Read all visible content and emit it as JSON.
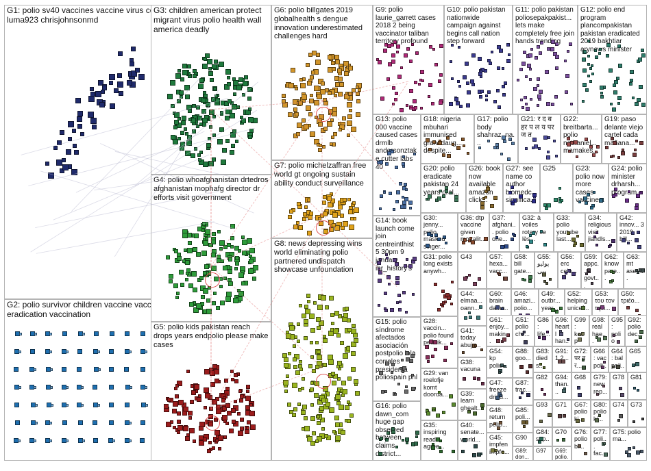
{
  "groups": [
    {
      "id": "G1",
      "label": "G1: polio sv40 vaccines vaccine virus contaminated simian cancer luma923 chrisjohnsonmd",
      "color": "#1f2a6b",
      "ring": false
    },
    {
      "id": "G2",
      "label": "G2: polio survivor children vaccine vaccines health world virus eradication vaccination",
      "color": "#1e6fb0",
      "ring": true
    },
    {
      "id": "G3",
      "label": "G3: children american protect migrant virus polio health wall america deadly",
      "color": "#1f7a3d",
      "ring": false
    },
    {
      "id": "G4",
      "label": "G4: polio whoafghanistan drtedros afghanistan mophafg director dr efforts visit government",
      "color": "#2e9c3a",
      "ring": true
    },
    {
      "id": "G5",
      "label": "G5: polio kids pakistan reach drops years endpolio please make cases",
      "color": "#9b1c1c",
      "ring": true
    },
    {
      "id": "G6",
      "label": "G6: polio billgates 2019 globalhealth s dengue innovation underestimated challenges hard",
      "color": "#d2952a",
      "ring": true
    },
    {
      "id": "G7",
      "label": "G7: polio michelzaffran free world gt ongoing sustain ability conduct surveillance",
      "color": "#e0a21b",
      "ring": true
    },
    {
      "id": "G8",
      "label": "G8: news depressing wins world eliminating polio partnered undispatch showcase unfoundation",
      "color": "#9ab51f",
      "ring": true
    },
    {
      "id": "G9",
      "label": "G9: polio laurie_garrett cases 2018 2 being vaccinator taliban territory profound",
      "color": "#b02a78",
      "ring": true
    },
    {
      "id": "G10",
      "label": "G10: polio pakistan nationwide campaign against begins call nation step forward",
      "color": "#3b3b8f",
      "ring": false
    },
    {
      "id": "G11",
      "label": "G11: polio pakistan poliosepakpakist... lets make completely free join hands trending",
      "color": "#7b4fa0",
      "ring": false
    },
    {
      "id": "G12",
      "label": "G12: polio end program plancompakistan pakistan eradicated 2019 bakhtiar arynews minister",
      "color": "#2e7d6b",
      "ring": false
    },
    {
      "id": "G13",
      "label": "G13: polio 000 vaccine caused cases drmlb andersonztake cutter labs 40",
      "color": "#4a6fa5",
      "ring": false
    },
    {
      "id": "G14",
      "label": "G14: book launch come join centreintlhist 5 30pm 9 january ihr_history's",
      "color": "#5a3e85",
      "ring": false
    },
    {
      "id": "G15",
      "label": "G15: polio síndrome afectados asociación postpolio lola corrales presidenta poliospain pnl",
      "color": "#6b6b6b",
      "ring": false
    },
    {
      "id": "G16",
      "label": "G16: polio dawn_com huge gap observed between claims district...",
      "color": "#2f6b4a",
      "ring": false
    },
    {
      "id": "G17",
      "label": "G17: polio body shahraz_na...",
      "color": "#5a7fa8",
      "ring": false
    },
    {
      "id": "G18",
      "label": "G18: nigeria mbuhari immunised granddaug... despite...",
      "color": "#8a5a2b",
      "ring": false
    },
    {
      "id": "G19",
      "label": "G19: paso delante viejo cartel cada mañana...",
      "color": "#7a3e3e",
      "ring": false
    },
    {
      "id": "G20",
      "label": "G20: polio eradicate pakistan 24 years oral...",
      "color": "#3e7a5a",
      "ring": false
    },
    {
      "id": "G21",
      "label": "G21: र द ब हर प ल य पर ज त",
      "color": "#4b4b9a",
      "ring": false
    },
    {
      "id": "G22",
      "label": "G22: breitbarta... polio nathaniel... mamakes...",
      "color": "#9a4b4b",
      "ring": false
    },
    {
      "id": "G23",
      "label": "G23: polio now more cases vaccine...",
      "color": "#2e6b8a",
      "ring": false
    },
    {
      "id": "G24",
      "label": "G24: polio minister drharsh... program...",
      "color": "#6b2e8a",
      "ring": false
    },
    {
      "id": "G25",
      "label": "G25",
      "color": "#2e8a6b",
      "ring": false
    },
    {
      "id": "G26",
      "label": "G26: book now available amazon click...",
      "color": "#8a6b2e",
      "ring": false
    },
    {
      "id": "G27",
      "label": "G27: see name co author biomedc... significa...",
      "color": "#2e2e8a",
      "ring": false
    },
    {
      "id": "G28",
      "label": "G28: vaccin... polio found petmik...",
      "color": "#8a2e5a",
      "ring": false
    },
    {
      "id": "G29",
      "label": "G29: van roelofje komt doorda...",
      "color": "#5a8a2e",
      "ring": false
    },
    {
      "id": "G30",
      "label": "G30: jenny... polio masked singer...",
      "color": "#2e5a8a",
      "ring": false
    },
    {
      "id": "G31",
      "label": "G31: polio long exists anywh...",
      "color": "#8a2e2e",
      "ring": false
    },
    {
      "id": "G32",
      "label": "G32: à voiles rotary ce lès...",
      "color": "#2e8a8a",
      "ring": false
    },
    {
      "id": "G33",
      "label": "G33: polio youtube last...",
      "color": "#6b6b2e",
      "ring": false
    },
    {
      "id": "G34",
      "label": "G34: religious visit jiahdls...",
      "color": "#4b2e6b",
      "ring": false
    },
    {
      "id": "G35",
      "label": "G35: inspiring read agree...",
      "color": "#2e6b2e",
      "ring": false
    },
    {
      "id": "G36",
      "label": "G36: dtp vaccine given mortalit...",
      "color": "#8a4b2e",
      "ring": false
    },
    {
      "id": "G37",
      "label": "G37: afghani... polio one...",
      "color": "#2e4b8a",
      "ring": false
    },
    {
      "id": "G38",
      "label": "G38: vacuna",
      "color": "#6b2e4b",
      "ring": false
    },
    {
      "id": "G39",
      "label": "G39: learn ghealt...",
      "color": "#4b6b2e",
      "ring": false
    },
    {
      "id": "G40",
      "label": "G40: senate... world...",
      "color": "#2e4b4b",
      "ring": false
    },
    {
      "id": "G41",
      "label": "G41: today abuja...",
      "color": "#6b4b2e",
      "ring": false
    },
    {
      "id": "G42",
      "label": "G42: innov... 3 2019 bill...",
      "color": "#3e3e7a",
      "ring": false
    },
    {
      "id": "G43",
      "label": "G43",
      "color": "#7a3e5a",
      "ring": false
    },
    {
      "id": "G44",
      "label": "G44: elmaa... oann...",
      "color": "#3e7a7a",
      "ring": false
    },
    {
      "id": "G45",
      "label": "G45: impfen impfe...",
      "color": "#7a7a3e",
      "ring": false
    },
    {
      "id": "G46",
      "label": "G46: amazi... polio...",
      "color": "#5a3e7a",
      "ring": false
    },
    {
      "id": "G47",
      "label": "G47: freeze dried...",
      "color": "#3e5a7a",
      "ring": false
    },
    {
      "id": "G48",
      "label": "G48: return polio...",
      "color": "#7a5a3e",
      "ring": false
    },
    {
      "id": "G49",
      "label": "G49: outbr... year...",
      "color": "#3e7a3e",
      "ring": false
    },
    {
      "id": "G50",
      "label": "G50: τριέο...",
      "color": "#7a3e3e",
      "ring": false
    },
    {
      "id": "G51",
      "label": "G51: polio chil...",
      "color": "#3e3e5a",
      "ring": false
    },
    {
      "id": "G52",
      "label": "G52: helping unicef...",
      "color": "#5a7a3e",
      "ring": false
    },
    {
      "id": "G53",
      "label": "G53: του τον τηνι...",
      "color": "#7a3e7a",
      "ring": false
    },
    {
      "id": "G54",
      "label": "G54: kp polio...",
      "color": "#3e5a5a",
      "ring": false
    },
    {
      "id": "G55",
      "label": "G55: پولیو پپی",
      "color": "#5a5a3e",
      "ring": false
    },
    {
      "id": "G56",
      "label": "G56: erc cele...",
      "color": "#4b3e7a",
      "ring": false
    },
    {
      "id": "G57",
      "label": "G57: hexa... vacc...",
      "color": "#7a4b3e",
      "ring": false
    },
    {
      "id": "G58",
      "label": "G58: bill gate...",
      "color": "#3e7a4b",
      "ring": false
    },
    {
      "id": "G59",
      "label": "G59: appc... govt...",
      "color": "#4b3e4b",
      "ring": false
    },
    {
      "id": "G60",
      "label": "G60: brain dama...",
      "color": "#3e4b7a",
      "ring": false
    },
    {
      "id": "G61",
      "label": "G61: enjoy... makin...",
      "color": "#7a3e4b",
      "ring": false
    },
    {
      "id": "G62",
      "label": "G62: know pare...",
      "color": "#4b7a3e",
      "ring": false
    },
    {
      "id": "G63",
      "label": "G63: mt asee...",
      "color": "#3e4b4b",
      "ring": false
    },
    {
      "id": "G64",
      "label": "G64: bal poli...",
      "color": "#4b4b3e",
      "ring": false
    },
    {
      "id": "G65",
      "label": "G65",
      "color": "#3e6b6b",
      "ring": false
    },
    {
      "id": "G66",
      "label": "G66: vac poli...",
      "color": "#6b3e6b",
      "ring": false
    },
    {
      "id": "G67",
      "label": "G67: polio ki...",
      "color": "#6b6b3e",
      "ring": false
    },
    {
      "id": "G68",
      "label": "G68",
      "color": "#3e3e6b",
      "ring": false
    },
    {
      "id": "G69",
      "label": "G69: polio...",
      "color": "#6b3e3e",
      "ring": false
    },
    {
      "id": "G70",
      "label": "G70",
      "color": "#3e6b3e",
      "ring": false
    },
    {
      "id": "G71",
      "label": "G71",
      "color": "#5a3e3e",
      "ring": false
    },
    {
      "id": "G72",
      "label": "G72: पर न र...",
      "color": "#3e5a3e",
      "ring": false
    },
    {
      "id": "G73",
      "label": "G73",
      "color": "#3e3e3e",
      "ring": false
    },
    {
      "id": "G74",
      "label": "G74",
      "color": "#5a5a5a",
      "ring": false
    },
    {
      "id": "G75",
      "label": "G75: polio ma...",
      "color": "#4b5a6b",
      "ring": false
    },
    {
      "id": "G76",
      "label": "G76: polio bl...",
      "color": "#6b5a4b",
      "ring": false
    },
    {
      "id": "G77",
      "label": "G77: poli... fac...",
      "color": "#4b6b5a",
      "ring": false
    },
    {
      "id": "G78",
      "label": "G78",
      "color": "#5a4b6b",
      "ring": false
    },
    {
      "id": "G79",
      "label": "G79: new rep...",
      "color": "#6b4b5a",
      "ring": false
    },
    {
      "id": "G80",
      "label": "G80: polio ki...",
      "color": "#5a6b4b",
      "ring": false
    },
    {
      "id": "G81",
      "label": "G81",
      "color": "#2e5a6b",
      "ring": false
    },
    {
      "id": "G82",
      "label": "G82",
      "color": "#6b2e5a",
      "ring": false
    },
    {
      "id": "G83",
      "label": "G83: died s...",
      "color": "#5a6b2e",
      "ring": false
    },
    {
      "id": "G84",
      "label": "G84: sup...",
      "color": "#2e6b5a",
      "ring": false
    },
    {
      "id": "G85",
      "label": "G85: poli...",
      "color": "#6b5a2e",
      "ring": false
    },
    {
      "id": "G86",
      "label": "G86: life...",
      "color": "#5a2e6b",
      "ring": false
    },
    {
      "id": "G87",
      "label": "G87: trac...",
      "color": "#2e2e5a",
      "ring": false
    },
    {
      "id": "G88",
      "label": "G88: goo...",
      "color": "#5a2e2e",
      "ring": false
    },
    {
      "id": "G89",
      "label": "G89: don...",
      "color": "#2e5a2e",
      "ring": false
    },
    {
      "id": "G90",
      "label": "G90",
      "color": "#4a4a6a",
      "ring": false
    },
    {
      "id": "G91",
      "label": "G91: 1 2...",
      "color": "#6a4a4a",
      "ring": false
    },
    {
      "id": "G92",
      "label": "G92: polio dec...",
      "color": "#4a6a4a",
      "ring": false
    },
    {
      "id": "G93",
      "label": "G93",
      "color": "#6a6a4a",
      "ring": false
    },
    {
      "id": "G94",
      "label": "G94: than...",
      "color": "#4a6a6a",
      "ring": false
    },
    {
      "id": "G95",
      "label": "G95: polio anc...",
      "color": "#6a4a6a",
      "ring": false
    },
    {
      "id": "G96",
      "label": "G96: heartl han...",
      "color": "#5a5a7a",
      "ring": false
    },
    {
      "id": "G97",
      "label": "G97",
      "color": "#7a5a5a",
      "ring": false
    },
    {
      "id": "G98",
      "label": "G98: real hae...",
      "color": "#5a7a5a",
      "ring": false
    },
    {
      "id": "G99",
      "label": "G99: keep hel...",
      "color": "#7a7a5a",
      "ring": false
    }
  ]
}
